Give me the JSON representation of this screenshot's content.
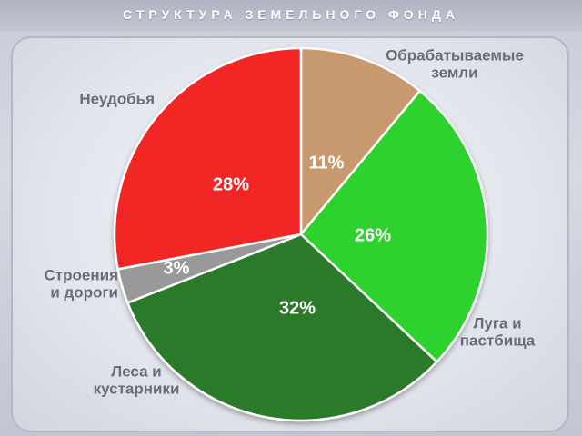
{
  "chart_data": {
    "type": "pie",
    "title": "СТРУКТУРА ЗЕМЕЛЬНОГО ФОНДА",
    "slices": [
      {
        "label": [
          "Обрабатываемые",
          "земли"
        ],
        "value": 11,
        "value_label": "11%",
        "color": "#c8996e"
      },
      {
        "label": [
          "Луга и",
          "пастбища"
        ],
        "value": 26,
        "value_label": "26%",
        "color": "#2fd22f"
      },
      {
        "label": [
          "Леса и",
          "кустарники"
        ],
        "value": 32,
        "value_label": "32%",
        "color": "#2c7a2c"
      },
      {
        "label": [
          "Строения",
          "и дороги"
        ],
        "value": 3,
        "value_label": "3%",
        "color": "#999999"
      },
      {
        "label": [
          "Неудобья"
        ],
        "value": 28,
        "value_label": "28%",
        "color": "#f32828"
      }
    ],
    "start_angle": "12 o'clock",
    "direction": "clockwise",
    "legend": "none"
  }
}
